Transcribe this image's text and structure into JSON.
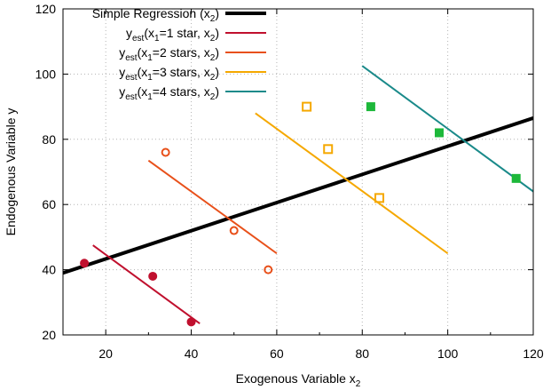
{
  "chart_data": {
    "type": "scatter",
    "xlabel": {
      "main": "Exogenous Variable x",
      "sub": "2"
    },
    "ylabel": "Endogenous Variable y",
    "xlim": [
      10,
      120
    ],
    "ylim": [
      20,
      120
    ],
    "xticks": [
      20,
      40,
      60,
      80,
      100,
      120
    ],
    "yticks": [
      20,
      40,
      60,
      80,
      100,
      120
    ],
    "grid": true,
    "legend_position": "top-left",
    "series": [
      {
        "legend": [
          {
            "t": "Simple Regression (x",
            "sub": false
          },
          {
            "t": "2",
            "sub": true
          },
          {
            "t": ")",
            "sub": false
          }
        ],
        "kind": "line",
        "color": "#000000",
        "width": 4,
        "line": [
          [
            10,
            39
          ],
          [
            120,
            86.5
          ]
        ]
      },
      {
        "legend": [
          {
            "t": "y",
            "sub": false
          },
          {
            "t": "est",
            "sub": true
          },
          {
            "t": "(x",
            "sub": false
          },
          {
            "t": "1",
            "sub": true
          },
          {
            "t": "=1 star,   x",
            "sub": false
          },
          {
            "t": "2",
            "sub": true
          },
          {
            "t": ")",
            "sub": false
          }
        ],
        "kind": "line",
        "color": "#c0102e",
        "width": 2,
        "line": [
          [
            17,
            47.5
          ],
          [
            42,
            23.5
          ]
        ],
        "marker": "filled-circle",
        "points": [
          [
            15,
            42
          ],
          [
            31,
            38
          ],
          [
            40,
            24
          ]
        ]
      },
      {
        "legend": [
          {
            "t": "y",
            "sub": false
          },
          {
            "t": "est",
            "sub": true
          },
          {
            "t": "(x",
            "sub": false
          },
          {
            "t": "1",
            "sub": true
          },
          {
            "t": "=2 stars, x",
            "sub": false
          },
          {
            "t": "2",
            "sub": true
          },
          {
            "t": ")",
            "sub": false
          }
        ],
        "kind": "line",
        "color": "#e8501a",
        "width": 2,
        "line": [
          [
            30,
            73.5
          ],
          [
            60,
            45
          ]
        ],
        "marker": "open-circle",
        "points": [
          [
            34,
            76
          ],
          [
            50,
            52
          ],
          [
            58,
            40
          ]
        ]
      },
      {
        "legend": [
          {
            "t": "y",
            "sub": false
          },
          {
            "t": "est",
            "sub": true
          },
          {
            "t": "(x",
            "sub": false
          },
          {
            "t": "1",
            "sub": true
          },
          {
            "t": "=3 stars, x",
            "sub": false
          },
          {
            "t": "2",
            "sub": true
          },
          {
            "t": ")",
            "sub": false
          }
        ],
        "kind": "line",
        "color": "#f5a800",
        "width": 2,
        "line": [
          [
            55,
            88
          ],
          [
            100,
            45
          ]
        ],
        "marker": "open-square",
        "points": [
          [
            67,
            90
          ],
          [
            72,
            77
          ],
          [
            84,
            62
          ]
        ]
      },
      {
        "legend": [
          {
            "t": "y",
            "sub": false
          },
          {
            "t": "est",
            "sub": true
          },
          {
            "t": "(x",
            "sub": false
          },
          {
            "t": "1",
            "sub": true
          },
          {
            "t": "=4 stars, x",
            "sub": false
          },
          {
            "t": "2",
            "sub": true
          },
          {
            "t": ")",
            "sub": false
          }
        ],
        "kind": "line",
        "color": "#1a8a8a",
        "width": 2,
        "line": [
          [
            80,
            102.5
          ],
          [
            120,
            64
          ]
        ],
        "marker": "filled-square",
        "marker_color": "#1db83a",
        "points": [
          [
            82,
            90
          ],
          [
            98,
            82
          ],
          [
            116,
            68
          ]
        ]
      }
    ]
  }
}
